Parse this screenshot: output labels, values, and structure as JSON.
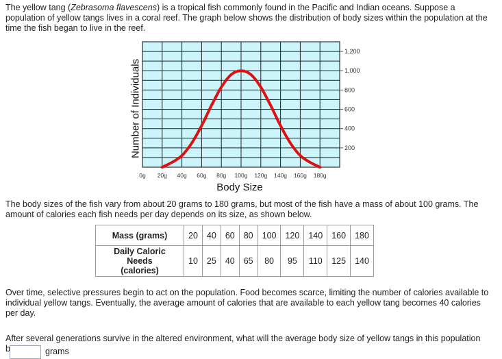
{
  "intro": {
    "before_italic": "The yellow tang (",
    "italic": "Zebrasoma flavescens",
    "after_italic": ") is a tropical fish commonly found in the Pacific and Indian oceans. Suppose a population of yellow tangs lives in a coral reef. The graph below shows the distribution of body sizes within the population at the time the fish began to live in the reef."
  },
  "chart_data": {
    "type": "line",
    "xlabel": "Body Size",
    "ylabel": "Number of Individuals",
    "x_ticks": [
      "0g",
      "20g",
      "40g",
      "60g",
      "80g",
      "100g",
      "120g",
      "140g",
      "160g",
      "180g"
    ],
    "y_ticks": [
      "200",
      "400",
      "600",
      "800",
      "1,000",
      "1,200"
    ],
    "xlim": [
      0,
      200
    ],
    "ylim": [
      0,
      1300
    ],
    "grid": true,
    "series": [
      {
        "color": "#dd1111",
        "x": [
          20,
          30,
          40,
          50,
          60,
          70,
          80,
          90,
          100,
          110,
          120,
          130,
          140,
          150,
          160,
          170,
          180
        ],
        "y": [
          0,
          50,
          120,
          250,
          430,
          640,
          830,
          960,
          1000,
          960,
          830,
          640,
          430,
          250,
          120,
          50,
          0
        ]
      }
    ],
    "plot_background": "#ccf5fb",
    "grid_color": "#222222"
  },
  "middle_text": "The body sizes of the fish vary from about 20 grams to 180 grams, but most of the fish have a mass of about 100 grams. The amount of calories each fish needs per day depends on its size, as shown below.",
  "table": {
    "row1_header": "Mass (grams)",
    "row1": [
      "20",
      "40",
      "60",
      "80",
      "100",
      "120",
      "140",
      "160",
      "180"
    ],
    "row2_header_line1": "Daily Caloric Needs",
    "row2_header_line2": "(calories)",
    "row2": [
      "10",
      "25",
      "40",
      "65",
      "80",
      "95",
      "110",
      "125",
      "140"
    ]
  },
  "pressure_text": "Over time, selective pressures begin to act on the population. Food becomes scarce, limiting the number of calories available to individual yellow tangs. Eventually, the average amount of calories that are available to each yellow tang becomes 40 calories per day.",
  "question": "After several generations survive in the altered environment, what will the average body size of yellow tangs in this population be?",
  "answer": {
    "value": "",
    "unit": "grams"
  }
}
